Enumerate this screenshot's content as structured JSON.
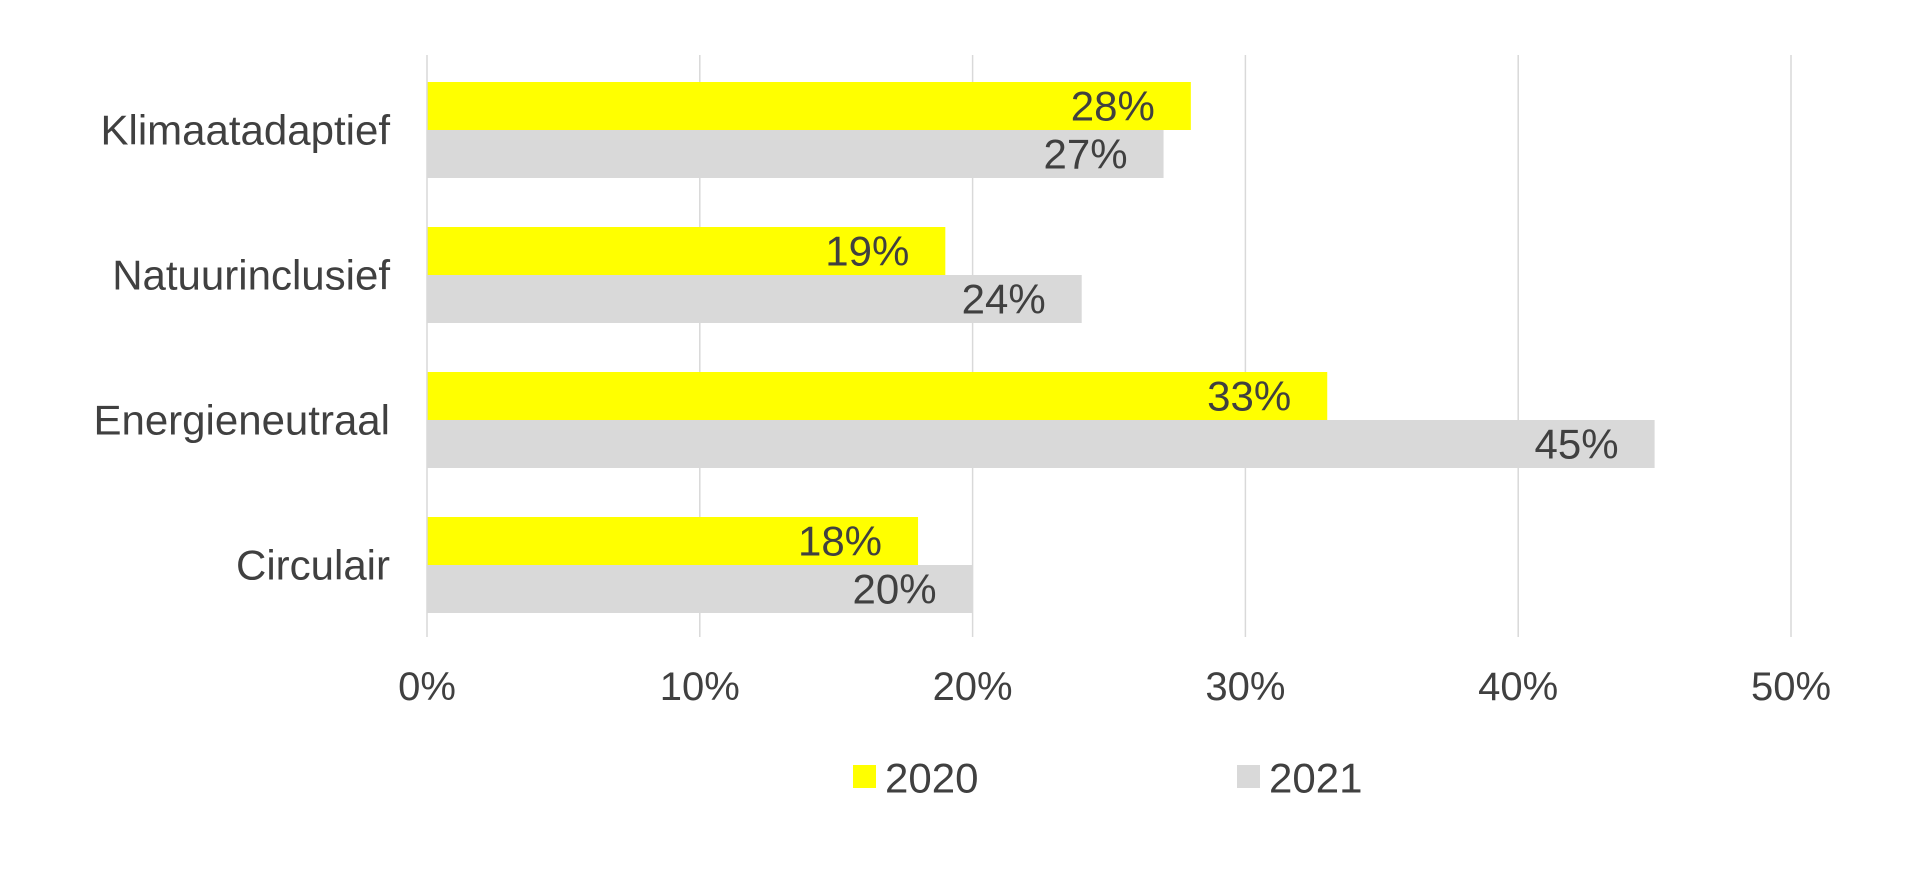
{
  "chart_data": {
    "type": "bar",
    "orientation": "horizontal",
    "title": "",
    "xlabel": "",
    "ylabel": "",
    "categories": [
      "Klimaatadaptief",
      "Natuurinclusief",
      "Energieneutraal",
      "Circulair"
    ],
    "series": [
      {
        "name": "2020",
        "color": "#ffff00",
        "values": [
          28,
          19,
          33,
          18
        ],
        "labels": [
          "28%",
          "19%",
          "33%",
          "18%"
        ]
      },
      {
        "name": "2021",
        "color": "#d9d9d9",
        "values": [
          27,
          24,
          45,
          20
        ],
        "labels": [
          "27%",
          "24%",
          "45%",
          "20%"
        ]
      }
    ],
    "xlim": [
      0,
      50
    ],
    "xticks": [
      0,
      10,
      20,
      30,
      40,
      50
    ],
    "xtick_labels": [
      "0%",
      "10%",
      "20%",
      "30%",
      "40%",
      "50%"
    ],
    "grid": "vertical",
    "legend_position": "bottom",
    "colors": {
      "text": "#404040",
      "grid": "#d9d9d9",
      "axis": "#d9d9d9"
    }
  }
}
